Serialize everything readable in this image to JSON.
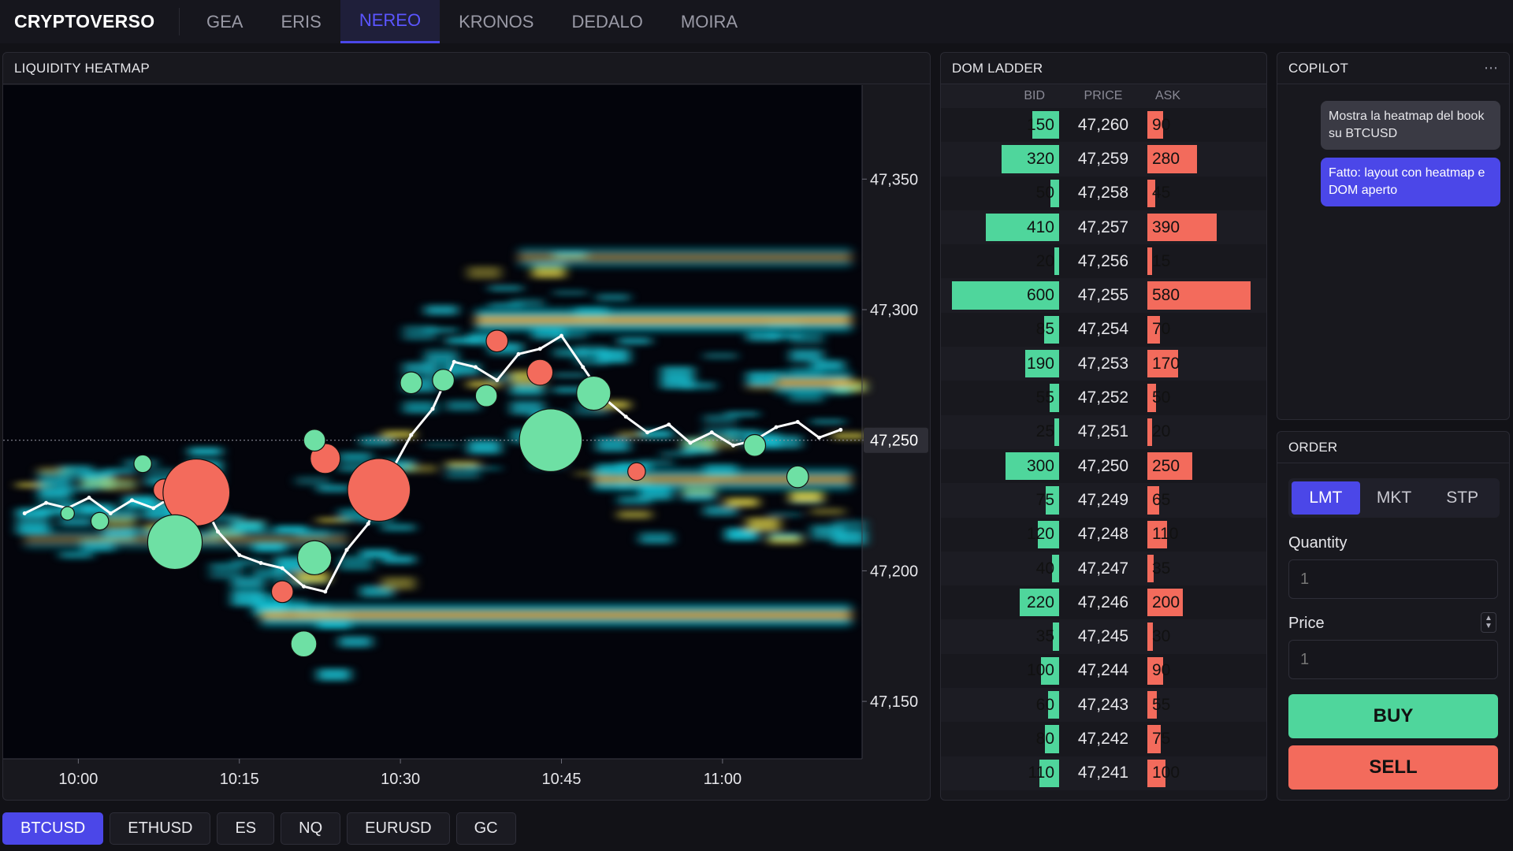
{
  "app": {
    "brand": "CRYPTOVERSO"
  },
  "nav": {
    "tabs": [
      "GEA",
      "ERIS",
      "NEREO",
      "KRONOS",
      "DEDALO",
      "MOIRA"
    ],
    "active": 2
  },
  "heatmap": {
    "title": "LIQUIDITY HEATMAP",
    "price_labels": [
      "47,350",
      "47,300",
      "47,250",
      "47,200",
      "47,150"
    ],
    "price_values": [
      47350,
      47300,
      47250,
      47200,
      47150
    ],
    "time_labels": [
      "10:00",
      "10:15",
      "10:30",
      "10:45",
      "11:00"
    ],
    "current_price_label": "47,250",
    "current_price": 47250,
    "colors": {
      "buy": "#6ee0a4",
      "sell": "#f36b5c",
      "price_line": "#ffffff"
    }
  },
  "chart_data": {
    "type": "scatter",
    "title": "LIQUIDITY HEATMAP",
    "xlabel": "",
    "ylabel": "",
    "x_ticks": [
      "10:00",
      "10:15",
      "10:30",
      "10:45",
      "11:00"
    ],
    "y_ticks": [
      47350,
      47300,
      47250,
      47200,
      47150
    ],
    "ylim": [
      47128,
      47386
    ],
    "price_path": [
      [
        "09:55",
        47222
      ],
      [
        "09:57",
        47226
      ],
      [
        "09:59",
        47224
      ],
      [
        "10:01",
        47228
      ],
      [
        "10:03",
        47222
      ],
      [
        "10:05",
        47227
      ],
      [
        "10:07",
        47224
      ],
      [
        "10:09",
        47229
      ],
      [
        "10:11",
        47231
      ],
      [
        "10:13",
        47215
      ],
      [
        "10:15",
        47206
      ],
      [
        "10:17",
        47203
      ],
      [
        "10:19",
        47201
      ],
      [
        "10:21",
        47194
      ],
      [
        "10:23",
        47192
      ],
      [
        "10:25",
        47208
      ],
      [
        "10:27",
        47218
      ],
      [
        "10:29",
        47237
      ],
      [
        "10:31",
        47252
      ],
      [
        "10:33",
        47262
      ],
      [
        "10:35",
        47280
      ],
      [
        "10:37",
        47278
      ],
      [
        "10:39",
        47273
      ],
      [
        "10:41",
        47283
      ],
      [
        "10:43",
        47285
      ],
      [
        "10:45",
        47290
      ],
      [
        "10:47",
        47278
      ],
      [
        "10:49",
        47266
      ],
      [
        "10:51",
        47259
      ],
      [
        "10:53",
        47253
      ],
      [
        "10:55",
        47256
      ],
      [
        "10:57",
        47249
      ],
      [
        "10:59",
        47253
      ],
      [
        "11:01",
        47248
      ],
      [
        "11:03",
        47250
      ],
      [
        "11:05",
        47255
      ],
      [
        "11:07",
        47257
      ],
      [
        "11:09",
        47251
      ],
      [
        "11:11",
        47254
      ]
    ],
    "trades": [
      {
        "side": "sell",
        "time": "10:08",
        "price": 47231,
        "size": 3
      },
      {
        "side": "sell",
        "time": "10:11",
        "price": 47230,
        "size": 14
      },
      {
        "side": "buy",
        "time": "10:09",
        "price": 47211,
        "size": 11
      },
      {
        "side": "buy",
        "time": "10:06",
        "price": 47241,
        "size": 2
      },
      {
        "side": "buy",
        "time": "10:02",
        "price": 47219,
        "size": 2
      },
      {
        "side": "buy",
        "time": "09:59",
        "price": 47222,
        "size": 1
      },
      {
        "side": "sell",
        "time": "10:19",
        "price": 47192,
        "size": 3
      },
      {
        "side": "buy",
        "time": "10:21",
        "price": 47172,
        "size": 4
      },
      {
        "side": "buy",
        "time": "10:22",
        "price": 47205,
        "size": 6
      },
      {
        "side": "sell",
        "time": "10:23",
        "price": 47243,
        "size": 5
      },
      {
        "side": "buy",
        "time": "10:22",
        "price": 47250,
        "size": 3
      },
      {
        "side": "sell",
        "time": "10:28",
        "price": 47231,
        "size": 13
      },
      {
        "side": "buy",
        "time": "10:31",
        "price": 47272,
        "size": 3
      },
      {
        "side": "buy",
        "time": "10:34",
        "price": 47273,
        "size": 3
      },
      {
        "side": "buy",
        "time": "10:38",
        "price": 47267,
        "size": 3
      },
      {
        "side": "sell",
        "time": "10:39",
        "price": 47288,
        "size": 3
      },
      {
        "side": "sell",
        "time": "10:43",
        "price": 47276,
        "size": 4
      },
      {
        "side": "buy",
        "time": "10:44",
        "price": 47250,
        "size": 13
      },
      {
        "side": "buy",
        "time": "10:48",
        "price": 47268,
        "size": 6
      },
      {
        "side": "sell",
        "time": "10:52",
        "price": 47238,
        "size": 2
      },
      {
        "side": "buy",
        "time": "11:03",
        "price": 47248,
        "size": 3
      },
      {
        "side": "buy",
        "time": "11:07",
        "price": 47236,
        "size": 3
      }
    ],
    "liquidity_bands": [
      {
        "price": 47183,
        "from": "10:17",
        "to": "11:12",
        "intensity": 0.85
      },
      {
        "price": 47296,
        "from": "10:37",
        "to": "11:12",
        "intensity": 0.9
      },
      {
        "price": 47272,
        "from": "11:05",
        "to": "11:12",
        "intensity": 0.85
      },
      {
        "price": 47235,
        "from": "10:48",
        "to": "11:12",
        "intensity": 0.75
      },
      {
        "price": 47320,
        "from": "10:41",
        "to": "11:12",
        "intensity": 0.55
      },
      {
        "price": 47212,
        "from": "09:55",
        "to": "10:25",
        "intensity": 0.45
      }
    ]
  },
  "dom": {
    "title": "DOM LADDER",
    "headers": {
      "bid": "BID",
      "price": "PRICE",
      "ask": "ASK"
    },
    "max_size": 600,
    "rows": [
      {
        "bid": "150",
        "price": "47,260",
        "ask": "90"
      },
      {
        "bid": "320",
        "price": "47,259",
        "ask": "280"
      },
      {
        "bid": "50",
        "price": "47,258",
        "ask": "45"
      },
      {
        "bid": "410",
        "price": "47,257",
        "ask": "390"
      },
      {
        "bid": "20",
        "price": "47,256",
        "ask": "15"
      },
      {
        "bid": "600",
        "price": "47,255",
        "ask": "580"
      },
      {
        "bid": "85",
        "price": "47,254",
        "ask": "70"
      },
      {
        "bid": "190",
        "price": "47,253",
        "ask": "170"
      },
      {
        "bid": "55",
        "price": "47,252",
        "ask": "50"
      },
      {
        "bid": "25",
        "price": "47,251",
        "ask": "20"
      },
      {
        "bid": "300",
        "price": "47,250",
        "ask": "250"
      },
      {
        "bid": "75",
        "price": "47,249",
        "ask": "65"
      },
      {
        "bid": "120",
        "price": "47,248",
        "ask": "110"
      },
      {
        "bid": "40",
        "price": "47,247",
        "ask": "35"
      },
      {
        "bid": "220",
        "price": "47,246",
        "ask": "200"
      },
      {
        "bid": "35",
        "price": "47,245",
        "ask": "30"
      },
      {
        "bid": "100",
        "price": "47,244",
        "ask": "90"
      },
      {
        "bid": "60",
        "price": "47,243",
        "ask": "55"
      },
      {
        "bid": "80",
        "price": "47,242",
        "ask": "75"
      },
      {
        "bid": "110",
        "price": "47,241",
        "ask": "100"
      }
    ]
  },
  "copilot": {
    "title": "COPILOT",
    "menu_icon": "more-horizontal-icon",
    "messages": [
      {
        "role": "user",
        "text": "Mostra la heatmap del book su BTCUSD"
      },
      {
        "role": "assistant",
        "text": "Fatto: layout con heatmap e DOM aperto"
      }
    ]
  },
  "order": {
    "title": "ORDER",
    "types": [
      "LMT",
      "MKT",
      "STP"
    ],
    "active_type": 0,
    "quantity_label": "Quantity",
    "quantity_placeholder": "1",
    "price_label": "Price",
    "price_placeholder": "1",
    "buy_label": "BUY",
    "sell_label": "SELL"
  },
  "symbols": {
    "items": [
      "BTCUSD",
      "ETHUSD",
      "ES",
      "NQ",
      "EURUSD",
      "GC"
    ],
    "active": 0
  }
}
